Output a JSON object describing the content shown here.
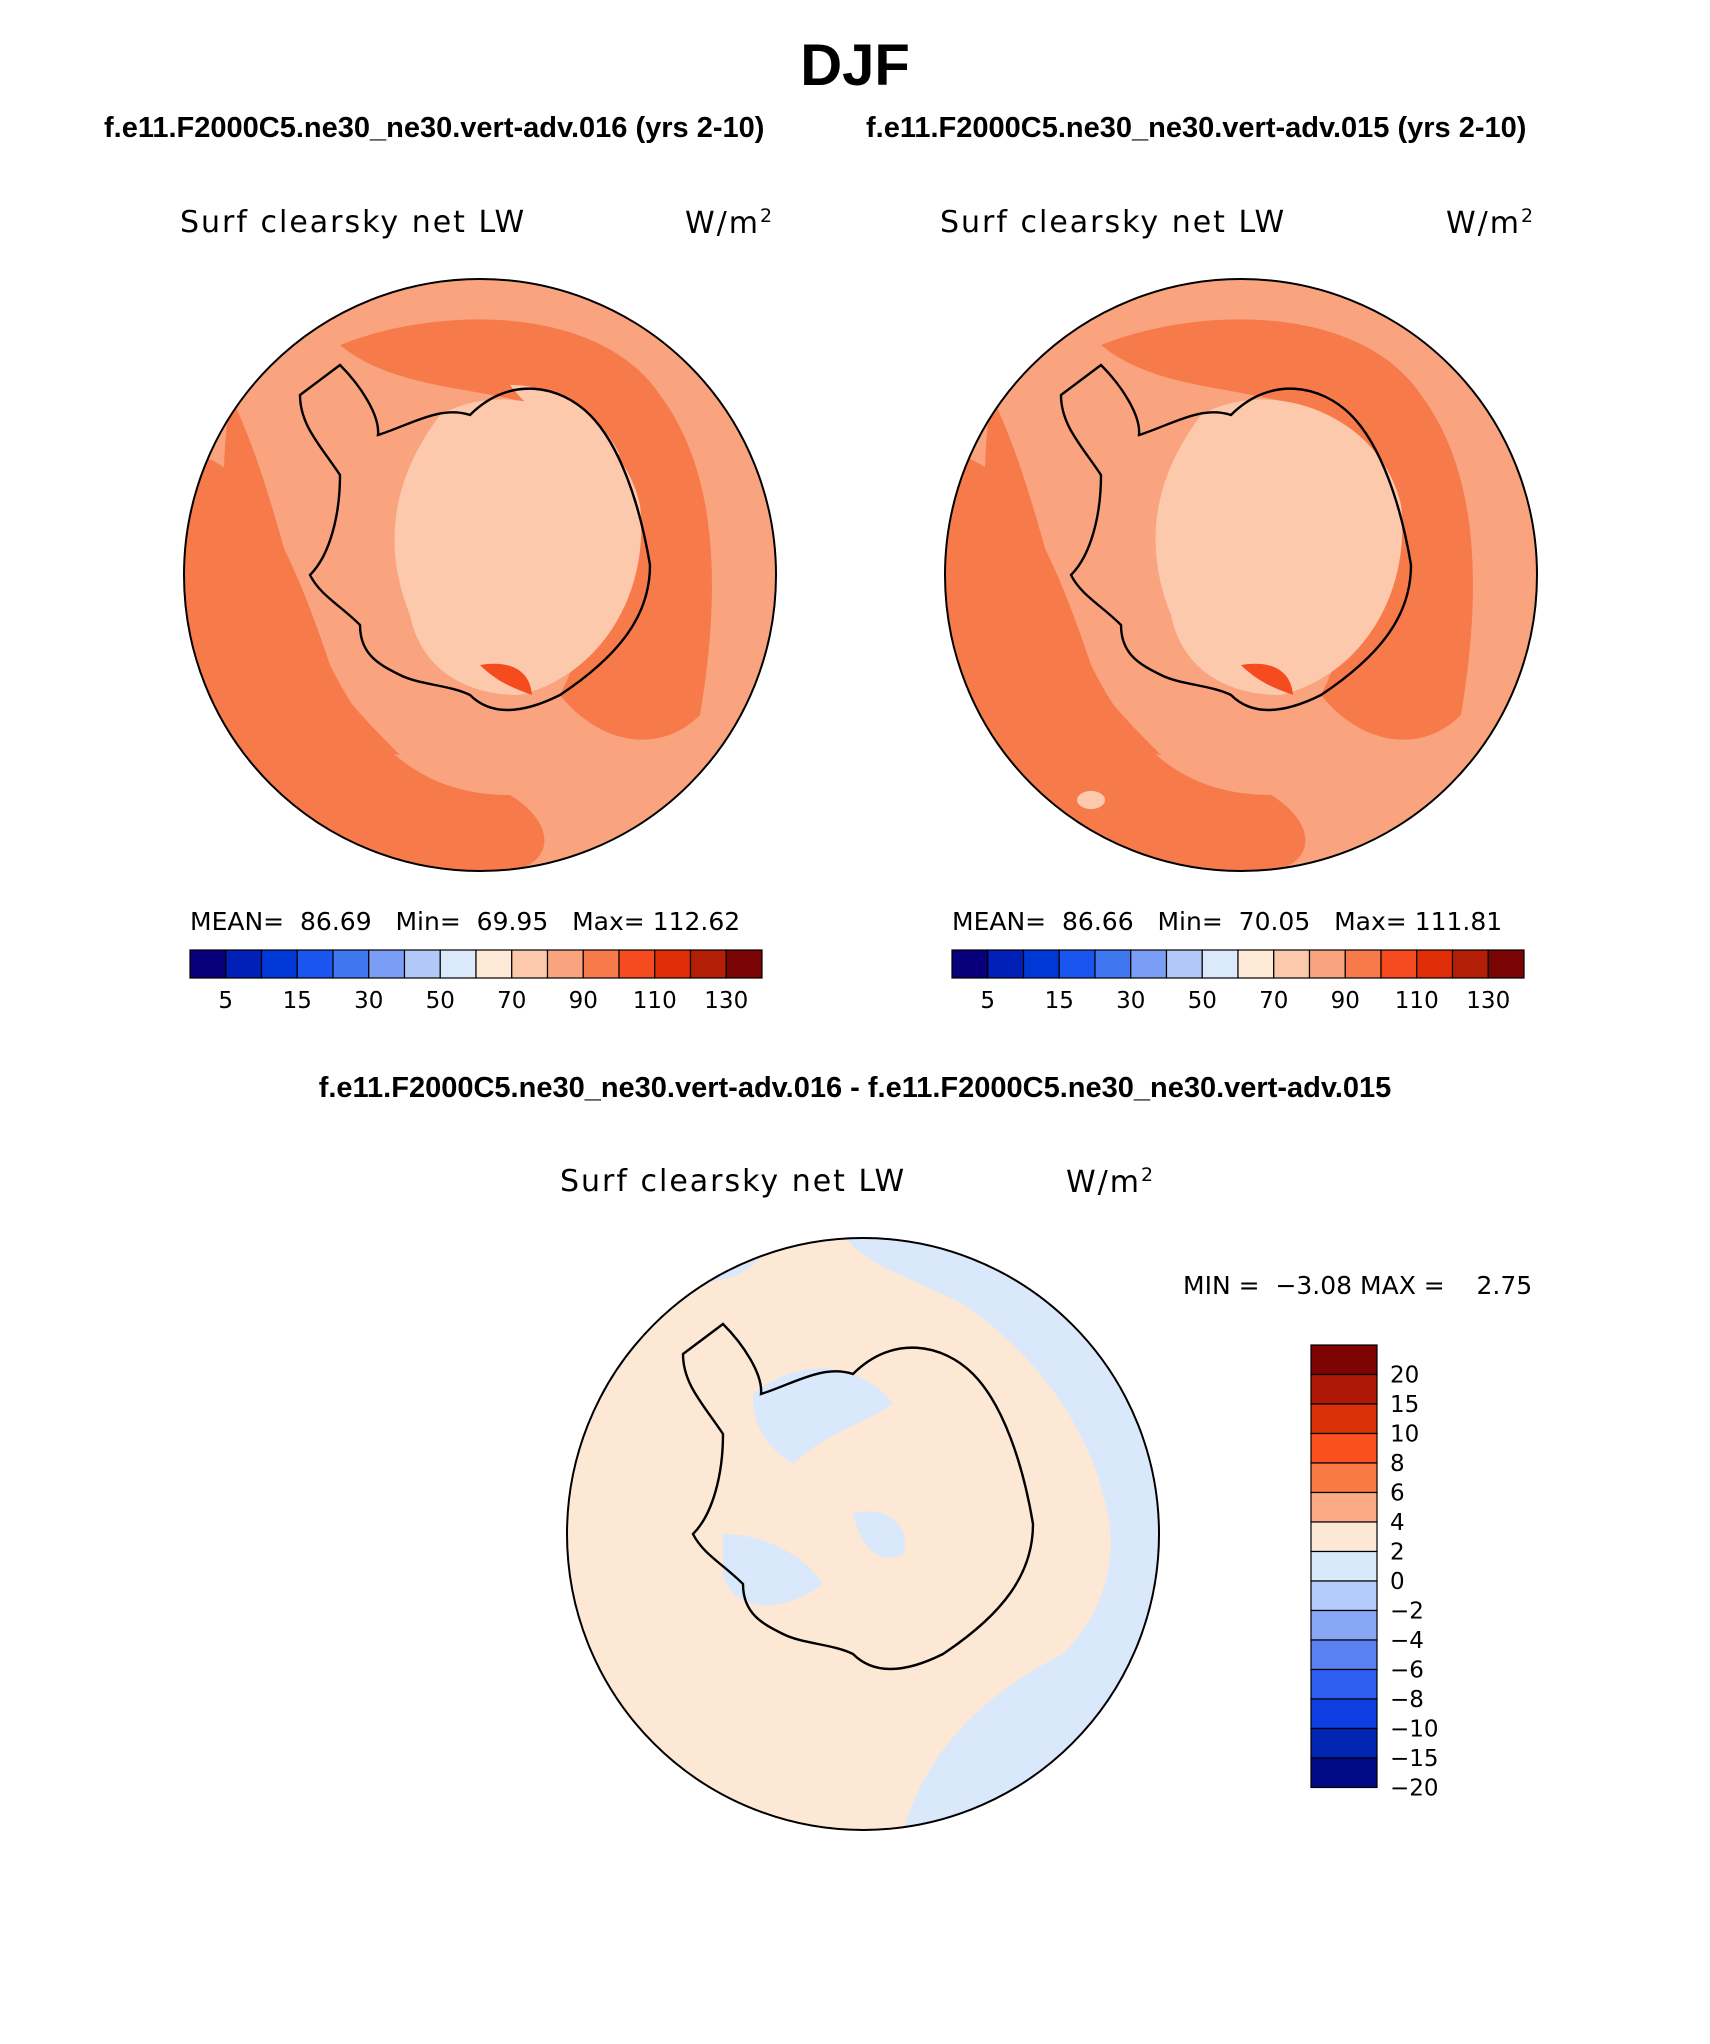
{
  "page_title": "DJF",
  "panels": [
    {
      "case_title": "f.e11.F2000C5.ne30_ne30.vert-adv.016 (yrs 2-10)",
      "variable": "Surf clearsky net LW",
      "units": "W/m",
      "units_exponent": "2",
      "mean_label": "MEAN=",
      "mean": "86.69",
      "min_label": "Min=",
      "min": "69.95",
      "max_label": "Max=",
      "max": "112.62"
    },
    {
      "case_title": "f.e11.F2000C5.ne30_ne30.vert-adv.015 (yrs 2-10)",
      "variable": "Surf clearsky net LW",
      "units": "W/m",
      "units_exponent": "2",
      "mean_label": "MEAN=",
      "mean": "86.66",
      "min_label": "Min=",
      "min": "70.05",
      "max_label": "Max=",
      "max": "111.81"
    }
  ],
  "diff_panel": {
    "title": "f.e11.F2000C5.ne30_ne30.vert-adv.016 - f.e11.F2000C5.ne30_ne30.vert-adv.015",
    "variable": "Surf clearsky net LW",
    "units": "W/m",
    "units_exponent": "2",
    "min_label": "MIN =",
    "min": "−3.08",
    "max_label": "MAX =",
    "max": "2.75"
  },
  "colorbar_top": {
    "colors": [
      "#08007a",
      "#0020b8",
      "#0038d8",
      "#1a55f0",
      "#3f77f0",
      "#7a9ef5",
      "#b2c9f7",
      "#dbeafb",
      "#fde9d6",
      "#fcc9ad",
      "#f9a37f",
      "#f77a4b",
      "#f64b1f",
      "#e02e08",
      "#b21e06",
      "#7a0303"
    ],
    "tick_labels": [
      "5",
      "15",
      "30",
      "50",
      "70",
      "90",
      "110",
      "130"
    ]
  },
  "colorbar_diff": {
    "colors": [
      "#7d0303",
      "#ac1805",
      "#db3108",
      "#fa5020",
      "#fa7a45",
      "#fbaa85",
      "#fde7d5",
      "#d9e8fb",
      "#b3cbf9",
      "#88a8f6",
      "#5a82f3",
      "#2d5ef1",
      "#0d3ee2",
      "#0325b4",
      "#020a86"
    ],
    "tick_labels": [
      "20",
      "15",
      "10",
      "8",
      "6",
      "4",
      "2",
      "0",
      "−2",
      "−4",
      "−6",
      "−8",
      "−10",
      "−15",
      "−20"
    ]
  }
}
